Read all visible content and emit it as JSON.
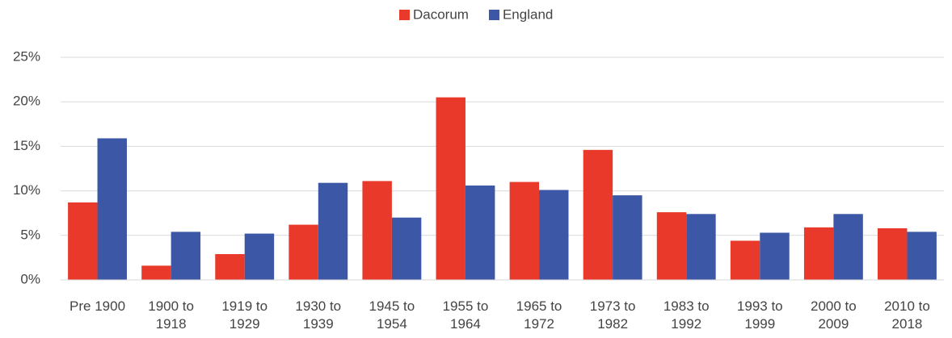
{
  "chart_data": {
    "type": "bar",
    "categories": [
      "Pre 1900",
      "1900 to 1918",
      "1919 to 1929",
      "1930 to 1939",
      "1945 to 1954",
      "1955 to 1964",
      "1965 to 1972",
      "1973 to 1982",
      "1983 to 1992",
      "1993 to 1999",
      "2000 to 2009",
      "2010 to 2018"
    ],
    "series": [
      {
        "name": "Dacorum",
        "color": "#e8392a",
        "values": [
          8.7,
          1.6,
          2.9,
          6.2,
          11.1,
          20.5,
          11.0,
          14.6,
          7.6,
          4.4,
          5.9,
          5.8
        ]
      },
      {
        "name": "England",
        "color": "#3c57a5",
        "values": [
          15.9,
          5.4,
          5.2,
          10.9,
          7.0,
          10.6,
          10.1,
          9.5,
          7.4,
          5.3,
          7.4,
          5.4
        ]
      }
    ],
    "ylim": [
      0,
      25
    ],
    "yticks": [
      {
        "value": 0,
        "label": "0%"
      },
      {
        "value": 5,
        "label": "5%"
      },
      {
        "value": 10,
        "label": "10%"
      },
      {
        "value": 15,
        "label": "15%"
      },
      {
        "value": 20,
        "label": "20%"
      },
      {
        "value": 25,
        "label": "25%"
      }
    ],
    "grid": true,
    "legend": "top"
  }
}
